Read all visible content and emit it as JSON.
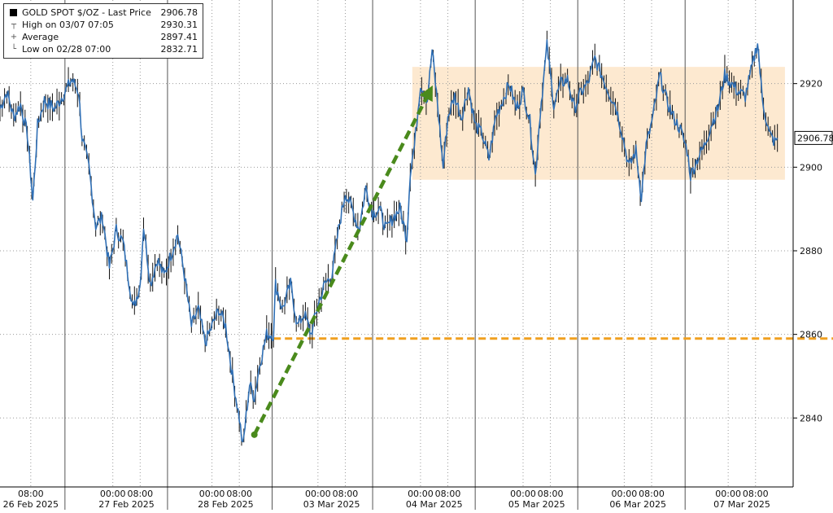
{
  "legend": {
    "title": "GOLD SPOT $/OZ - Last Price",
    "last_value": "2906.78",
    "rows": [
      {
        "label": "High on 03/07 07:05",
        "value": "2930.31",
        "glyph": "┬"
      },
      {
        "label": "Average",
        "value": "2897.41",
        "glyph": "+"
      },
      {
        "label": "Low on 02/28 07:00",
        "value": "2832.71",
        "glyph": "└"
      }
    ]
  },
  "last_price_tag": "2906.78",
  "colors": {
    "line": "#2f6fb5",
    "candle": "#111111",
    "green_arrow": "#4a8a1c",
    "orange_line": "#f0a020",
    "range_box": "#fde5c8"
  },
  "chart_data": {
    "type": "line",
    "title": "GOLD SPOT $/OZ - Last Price",
    "series": [
      {
        "name": "GOLD SPOT $/OZ - Last Price",
        "points": [
          [
            0.0,
            2914
          ],
          [
            1.0,
            2918
          ],
          [
            2.0,
            2912
          ],
          [
            3.0,
            2915
          ],
          [
            4.0,
            2908
          ],
          [
            4.8,
            2892
          ],
          [
            5.5,
            2910
          ],
          [
            6.5,
            2916
          ],
          [
            8.0,
            2914
          ],
          [
            9.5,
            2918
          ],
          [
            10.5,
            2921
          ],
          [
            11.5,
            2918
          ],
          [
            12.0,
            2907
          ],
          [
            13.0,
            2900
          ],
          [
            14.0,
            2886
          ],
          [
            15.0,
            2888
          ],
          [
            16.0,
            2876
          ],
          [
            17.0,
            2885
          ],
          [
            18.0,
            2882
          ],
          [
            19.5,
            2866
          ],
          [
            20.5,
            2872
          ],
          [
            21.0,
            2886
          ],
          [
            22.0,
            2872
          ],
          [
            23.0,
            2878
          ],
          [
            24.0,
            2874
          ],
          [
            25.0,
            2879
          ],
          [
            26.0,
            2884
          ],
          [
            27.0,
            2874
          ],
          [
            28.0,
            2862
          ],
          [
            29.0,
            2866
          ],
          [
            30.0,
            2858
          ],
          [
            31.0,
            2862
          ],
          [
            32.0,
            2866
          ],
          [
            33.0,
            2862
          ],
          [
            34.0,
            2850
          ],
          [
            35.0,
            2840
          ],
          [
            35.5,
            2833
          ],
          [
            36.5,
            2848
          ],
          [
            37.2,
            2845
          ],
          [
            38.0,
            2853
          ],
          [
            39.0,
            2860
          ],
          [
            40.0,
            2860
          ],
          [
            40.3,
            2872
          ],
          [
            41.3,
            2866
          ],
          [
            42.5,
            2872
          ],
          [
            43.5,
            2862
          ],
          [
            44.5,
            2865
          ],
          [
            45.5,
            2860
          ],
          [
            46.5,
            2867
          ],
          [
            47.5,
            2872
          ],
          [
            48.5,
            2874
          ],
          [
            49.5,
            2885
          ],
          [
            50.5,
            2894
          ],
          [
            51.5,
            2890
          ],
          [
            52.5,
            2885
          ],
          [
            53.5,
            2895
          ],
          [
            54.5,
            2889
          ],
          [
            55.5,
            2890
          ],
          [
            56.5,
            2885
          ],
          [
            57.5,
            2888
          ],
          [
            58.5,
            2890
          ],
          [
            59.5,
            2883
          ],
          [
            60.0,
            2899
          ],
          [
            60.6,
            2905
          ],
          [
            61.5,
            2920
          ],
          [
            62.5,
            2916
          ],
          [
            63.2,
            2928
          ],
          [
            64.0,
            2915
          ],
          [
            64.8,
            2900
          ],
          [
            65.5,
            2912
          ],
          [
            66.5,
            2917
          ],
          [
            67.5,
            2912
          ],
          [
            68.5,
            2919
          ],
          [
            69.5,
            2910
          ],
          [
            70.5,
            2908
          ],
          [
            71.5,
            2902
          ],
          [
            72.5,
            2912
          ],
          [
            73.5,
            2916
          ],
          [
            74.5,
            2920
          ],
          [
            75.5,
            2914
          ],
          [
            76.5,
            2918
          ],
          [
            77.5,
            2911
          ],
          [
            78.3,
            2898
          ],
          [
            79.0,
            2913
          ],
          [
            80.0,
            2929
          ],
          [
            81.0,
            2915
          ],
          [
            82.0,
            2920
          ],
          [
            83.0,
            2921
          ],
          [
            84.0,
            2914
          ],
          [
            85.0,
            2918
          ],
          [
            86.0,
            2920
          ],
          [
            87.0,
            2926
          ],
          [
            88.0,
            2922
          ],
          [
            89.0,
            2918
          ],
          [
            90.0,
            2915
          ],
          [
            91.0,
            2908
          ],
          [
            92.0,
            2900
          ],
          [
            93.0,
            2904
          ],
          [
            93.8,
            2893
          ],
          [
            94.5,
            2905
          ],
          [
            95.5,
            2912
          ],
          [
            96.5,
            2922
          ],
          [
            97.5,
            2916
          ],
          [
            98.5,
            2912
          ],
          [
            99.5,
            2909
          ],
          [
            100.5,
            2904
          ],
          [
            101.0,
            2898
          ],
          [
            102.0,
            2902
          ],
          [
            103.0,
            2905
          ],
          [
            104.0,
            2910
          ],
          [
            105.0,
            2914
          ],
          [
            106.0,
            2922
          ],
          [
            107.0,
            2920
          ],
          [
            108.0,
            2918
          ],
          [
            109.0,
            2917
          ],
          [
            110.0,
            2924
          ],
          [
            110.8,
            2930
          ],
          [
            111.5,
            2916
          ],
          [
            112.5,
            2908
          ],
          [
            113.3,
            2906
          ],
          [
            113.7,
            2907
          ]
        ]
      }
    ],
    "x_tick_labels": [
      {
        "t": 4.5,
        "label": "08:00"
      },
      {
        "t": 16.5,
        "label": "00:00"
      },
      {
        "t": 20.5,
        "label": "08:00"
      },
      {
        "t": 31.0,
        "label": "00:00"
      },
      {
        "t": 35.0,
        "label": "08:00"
      },
      {
        "t": 46.5,
        "label": "00:00"
      },
      {
        "t": 50.5,
        "label": "08:00"
      },
      {
        "t": 61.5,
        "label": "00:00"
      },
      {
        "t": 65.5,
        "label": "08:00"
      },
      {
        "t": 76.5,
        "label": "00:00"
      },
      {
        "t": 80.5,
        "label": "08:00"
      },
      {
        "t": 91.3,
        "label": "00:00"
      },
      {
        "t": 95.3,
        "label": "08:00"
      },
      {
        "t": 106.5,
        "label": "00:00"
      },
      {
        "t": 110.5,
        "label": "08:00"
      }
    ],
    "day_labels": [
      {
        "t": 4.5,
        "label": "26 Feb 2025"
      },
      {
        "t": 18.5,
        "label": "27 Feb 2025"
      },
      {
        "t": 33.0,
        "label": "28 Feb 2025"
      },
      {
        "t": 48.5,
        "label": "03 Mar 2025"
      },
      {
        "t": 63.5,
        "label": "04 Mar 2025"
      },
      {
        "t": 78.5,
        "label": "05 Mar 2025"
      },
      {
        "t": 93.3,
        "label": "06 Mar 2025"
      },
      {
        "t": 108.5,
        "label": "07 Mar 2025"
      }
    ],
    "day_separators": [
      9.5,
      24.5,
      39.8,
      54.5,
      69.5,
      84.5,
      100.2
    ],
    "xlim": [
      0,
      116.0
    ],
    "y_ticks": [
      2840,
      2860,
      2880,
      2900,
      2920
    ],
    "ylim": [
      2823.5,
      2940
    ],
    "grid": true,
    "annotations": {
      "range_box": {
        "x0": 60.3,
        "x1": 114.8,
        "y0": 2897,
        "y1": 2924
      },
      "green_arrow": {
        "x0": 37.2,
        "y0": 2836,
        "x1": 62.8,
        "y1": 2918
      },
      "orange_line": {
        "x0": 40.0,
        "x1": 116.0,
        "y": 2859
      }
    },
    "legend_position": "top-left"
  }
}
